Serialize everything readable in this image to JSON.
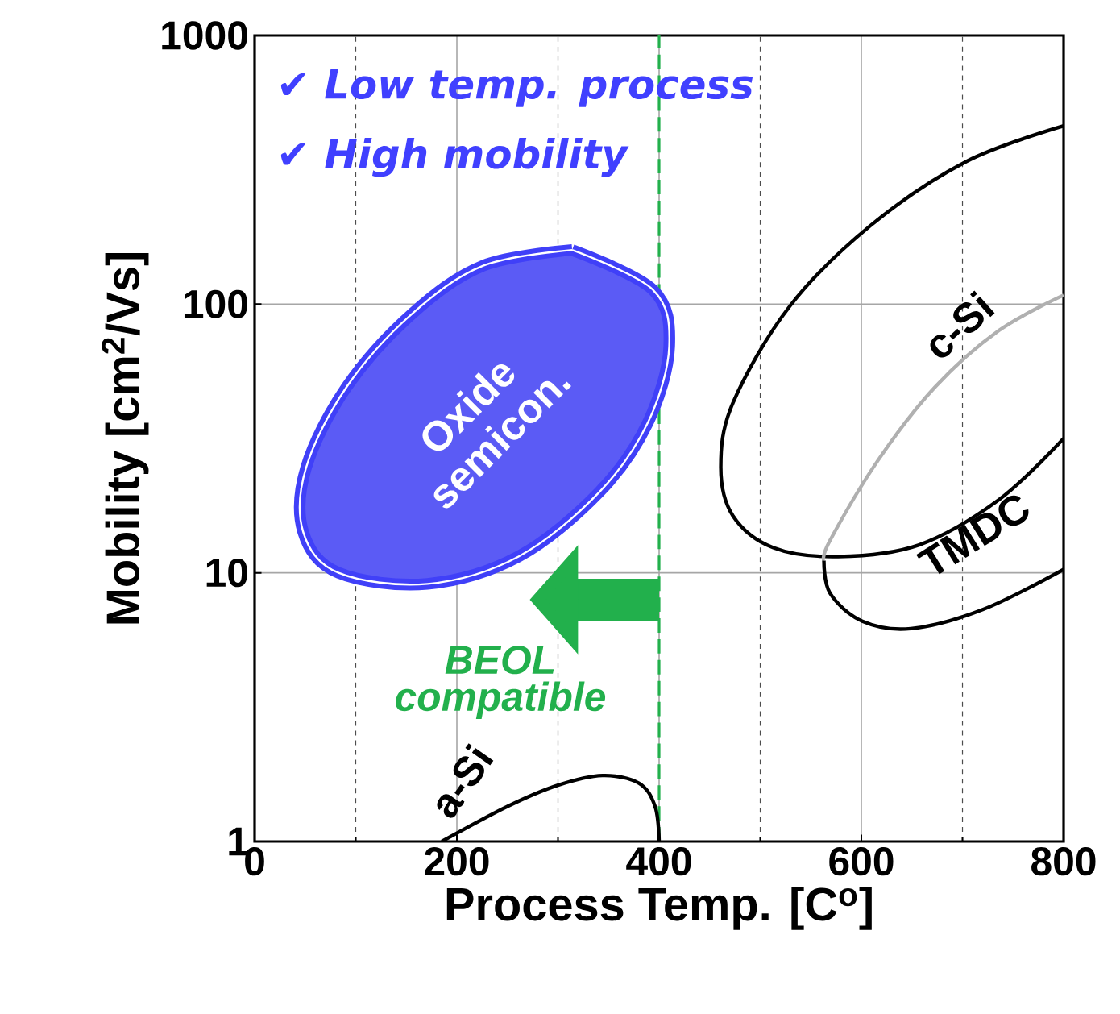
{
  "chart_data": {
    "type": "line",
    "xlabel": "Process Temp. [C$^{o}$]",
    "ylabel": "Mobility [cm$^{2}$/Vs]",
    "log": "y",
    "xlim": [
      0,
      800
    ],
    "ylim": [
      1,
      1000
    ],
    "xticks": [
      0,
      200,
      400,
      600,
      800
    ],
    "yticks": [
      1,
      10,
      100,
      1000
    ],
    "grid": true,
    "annotations": [
      "✔ Low temp. process",
      "✔ High mobility"
    ],
    "ref_lines": [
      {
        "axis": "x",
        "value": 400,
        "label": "BEOL compatible",
        "color": "#22b04c",
        "line_style": "dashed"
      }
    ],
    "series": [
      {
        "name": "Oxide semicon.",
        "type": "area",
        "color": "#5b5bf5",
        "x": [
          314,
          394,
          410,
          389,
          341,
          261,
          171,
          83,
          48,
          51,
          91,
          155,
          226
        ],
        "values": [
          159,
          113,
          69.5,
          36.3,
          20,
          11.5,
          9.1,
          10,
          14.2,
          24.7,
          49.2,
          91.6,
          139
        ]
      },
      {
        "name": "c-Si",
        "color": "#000000",
        "x": [
          800,
          704,
          609,
          529,
          473,
          461,
          473,
          513,
          577,
          657,
          736,
          800
        ],
        "values": [
          461,
          340,
          196,
          98,
          42.9,
          24.7,
          16.3,
          12.4,
          11.5,
          12.7,
          18.7,
          31.6
        ]
      },
      {
        "color": "#b0b0b0",
        "x": [
          800,
          736,
          673,
          617,
          569,
          563
        ],
        "values": [
          108,
          79.8,
          49.2,
          26.4,
          13.2,
          11.1
        ]
      },
      {
        "name": "TMDC",
        "color": "#000000",
        "x": [
          563,
          569,
          601,
          649,
          720,
          800
        ],
        "values": [
          11.1,
          8.4,
          6.6,
          6.2,
          7.3,
          10.3
        ]
      },
      {
        "name": "a-Si",
        "color": "#000000",
        "x": [
          185,
          250,
          300,
          344,
          380,
          396,
          400
        ],
        "values": [
          1,
          1.35,
          1.62,
          1.76,
          1.65,
          1.35,
          1
        ]
      }
    ]
  }
}
